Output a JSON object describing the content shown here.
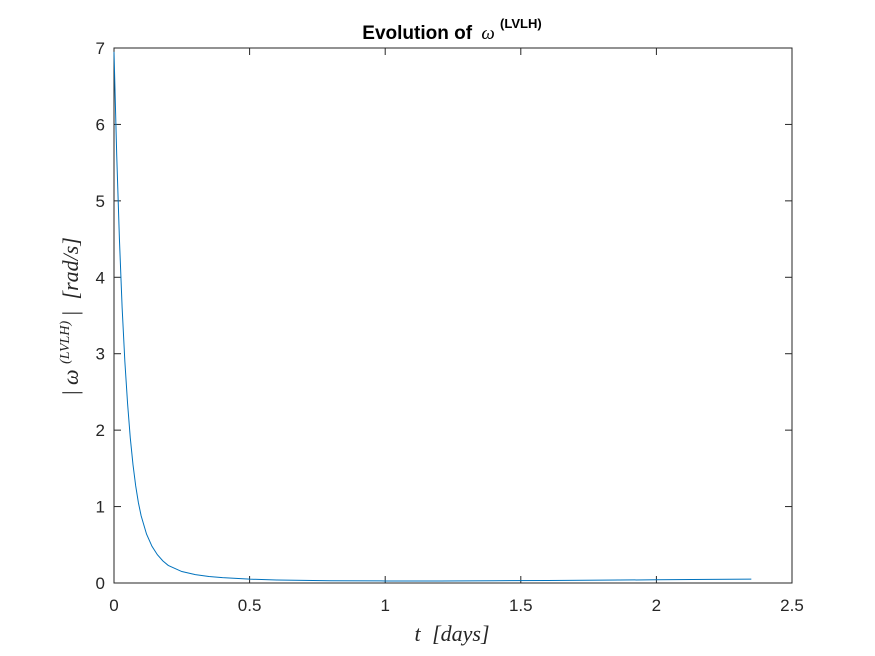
{
  "chart_data": {
    "type": "line",
    "title": {
      "prefix": "Evolution of",
      "symbol": "ω",
      "superscript": "(LVLH)"
    },
    "xlabel": {
      "var": "t",
      "unit": "[days]"
    },
    "ylabel": {
      "open": "|",
      "symbol": "ω",
      "superscript": "(LVLH)",
      "close": "|",
      "unit": "[rad/s]"
    },
    "xlim": [
      0,
      2.5
    ],
    "ylim": [
      0,
      7
    ],
    "xticks": [
      "0",
      "0.5",
      "1",
      "1.5",
      "2",
      "2.5"
    ],
    "yticks": [
      "0",
      "1",
      "2",
      "3",
      "4",
      "5",
      "6",
      "7"
    ],
    "grid": false,
    "line_color": "#0072BD",
    "series": [
      {
        "x": [
          0,
          0.01,
          0.02,
          0.03,
          0.04,
          0.05,
          0.06,
          0.07,
          0.08,
          0.09,
          0.1,
          0.12,
          0.14,
          0.16,
          0.18,
          0.2,
          0.25,
          0.3,
          0.35,
          0.4,
          0.5,
          0.6,
          0.7,
          0.8,
          1.0,
          1.2,
          1.4,
          1.6,
          1.8,
          2.0,
          2.2,
          2.35
        ],
        "y": [
          6.95,
          5.6,
          4.5,
          3.6,
          2.9,
          2.35,
          1.9,
          1.55,
          1.27,
          1.05,
          0.88,
          0.64,
          0.48,
          0.37,
          0.29,
          0.23,
          0.15,
          0.11,
          0.085,
          0.07,
          0.05,
          0.04,
          0.035,
          0.03,
          0.027,
          0.027,
          0.03,
          0.033,
          0.037,
          0.042,
          0.047,
          0.05
        ]
      }
    ]
  }
}
